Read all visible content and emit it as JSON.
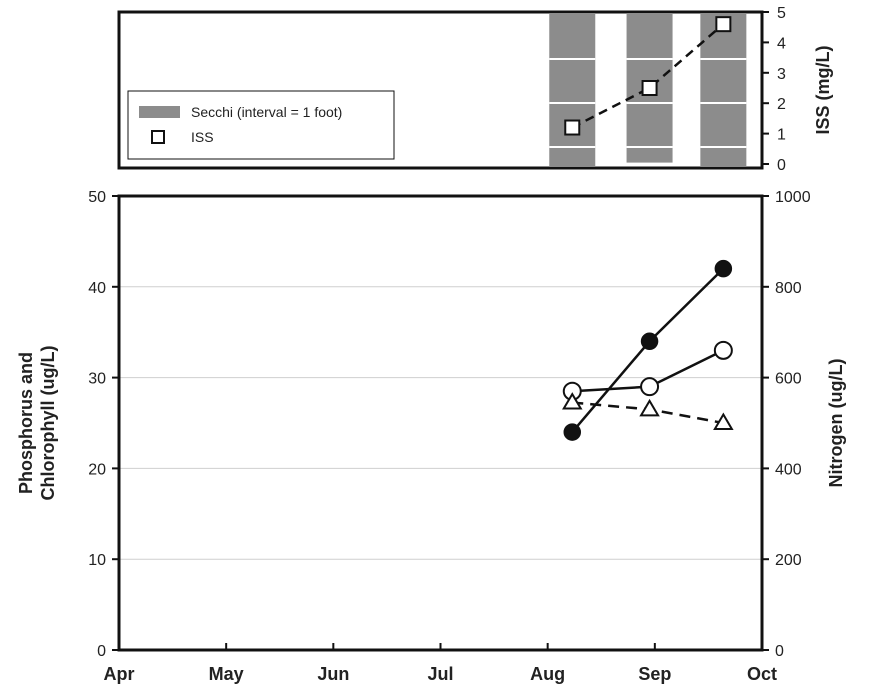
{
  "chart_data": [
    {
      "type": "bar",
      "name": "secchi-iss-panel",
      "legend": {
        "placement": "middle-left",
        "entries": [
          {
            "label": "Secchi (interval = 1 foot)",
            "symbol": "gray-bar"
          },
          {
            "label": "ISS",
            "symbol": "open-square"
          }
        ]
      },
      "right_axis": {
        "label": "ISS (mg/L)",
        "range": [
          0,
          5
        ],
        "ticks": [
          "0",
          "1",
          "2",
          "3",
          "4",
          "5"
        ]
      },
      "secchi": {
        "x": [
          "2023-08-08",
          "2023-08-30",
          "2023-09-20"
        ],
        "depth_ft": [
          3.7,
          3.4,
          3.6
        ],
        "interval_ft": 1
      },
      "iss": {
        "x": [
          "2023-08-08",
          "2023-08-30",
          "2023-09-20"
        ],
        "values": [
          1.2,
          2.5,
          4.6
        ]
      },
      "colors": {
        "bar": "#8c8c8c",
        "line": "#111111"
      }
    },
    {
      "type": "line",
      "name": "nutrients-panel",
      "x_axis": {
        "ticks": [
          "Apr",
          "May",
          "Jun",
          "Jul",
          "Aug",
          "Sep",
          "Oct"
        ]
      },
      "y_left": {
        "label": "Phosphorus and Chlorophyll (ug/L)",
        "label_lines": [
          "Phosphorus and",
          "Chlorophyll (ug/L)"
        ],
        "range": [
          0,
          50
        ],
        "ticks": [
          "0",
          "10",
          "20",
          "30",
          "40",
          "50"
        ]
      },
      "y_right": {
        "label": "Nitrogen (ug/L)",
        "range": [
          0,
          1000
        ],
        "ticks": [
          "0",
          "200",
          "400",
          "600",
          "800",
          "1000"
        ]
      },
      "grid": true,
      "series": [
        {
          "marker": "filled-circle",
          "line": "solid",
          "axis": "left",
          "x": [
            "2023-08-08",
            "2023-08-30",
            "2023-09-20"
          ],
          "values": [
            24,
            34,
            42
          ]
        },
        {
          "marker": "open-circle",
          "line": "solid",
          "axis": "left",
          "x": [
            "2023-08-08",
            "2023-08-30",
            "2023-09-20"
          ],
          "values": [
            28.5,
            29,
            33
          ]
        },
        {
          "marker": "open-triangle",
          "line": "dashed",
          "axis": "right",
          "x": [
            "2023-08-08",
            "2023-08-30",
            "2023-09-20"
          ],
          "values": [
            545,
            530,
            500
          ]
        }
      ]
    }
  ]
}
